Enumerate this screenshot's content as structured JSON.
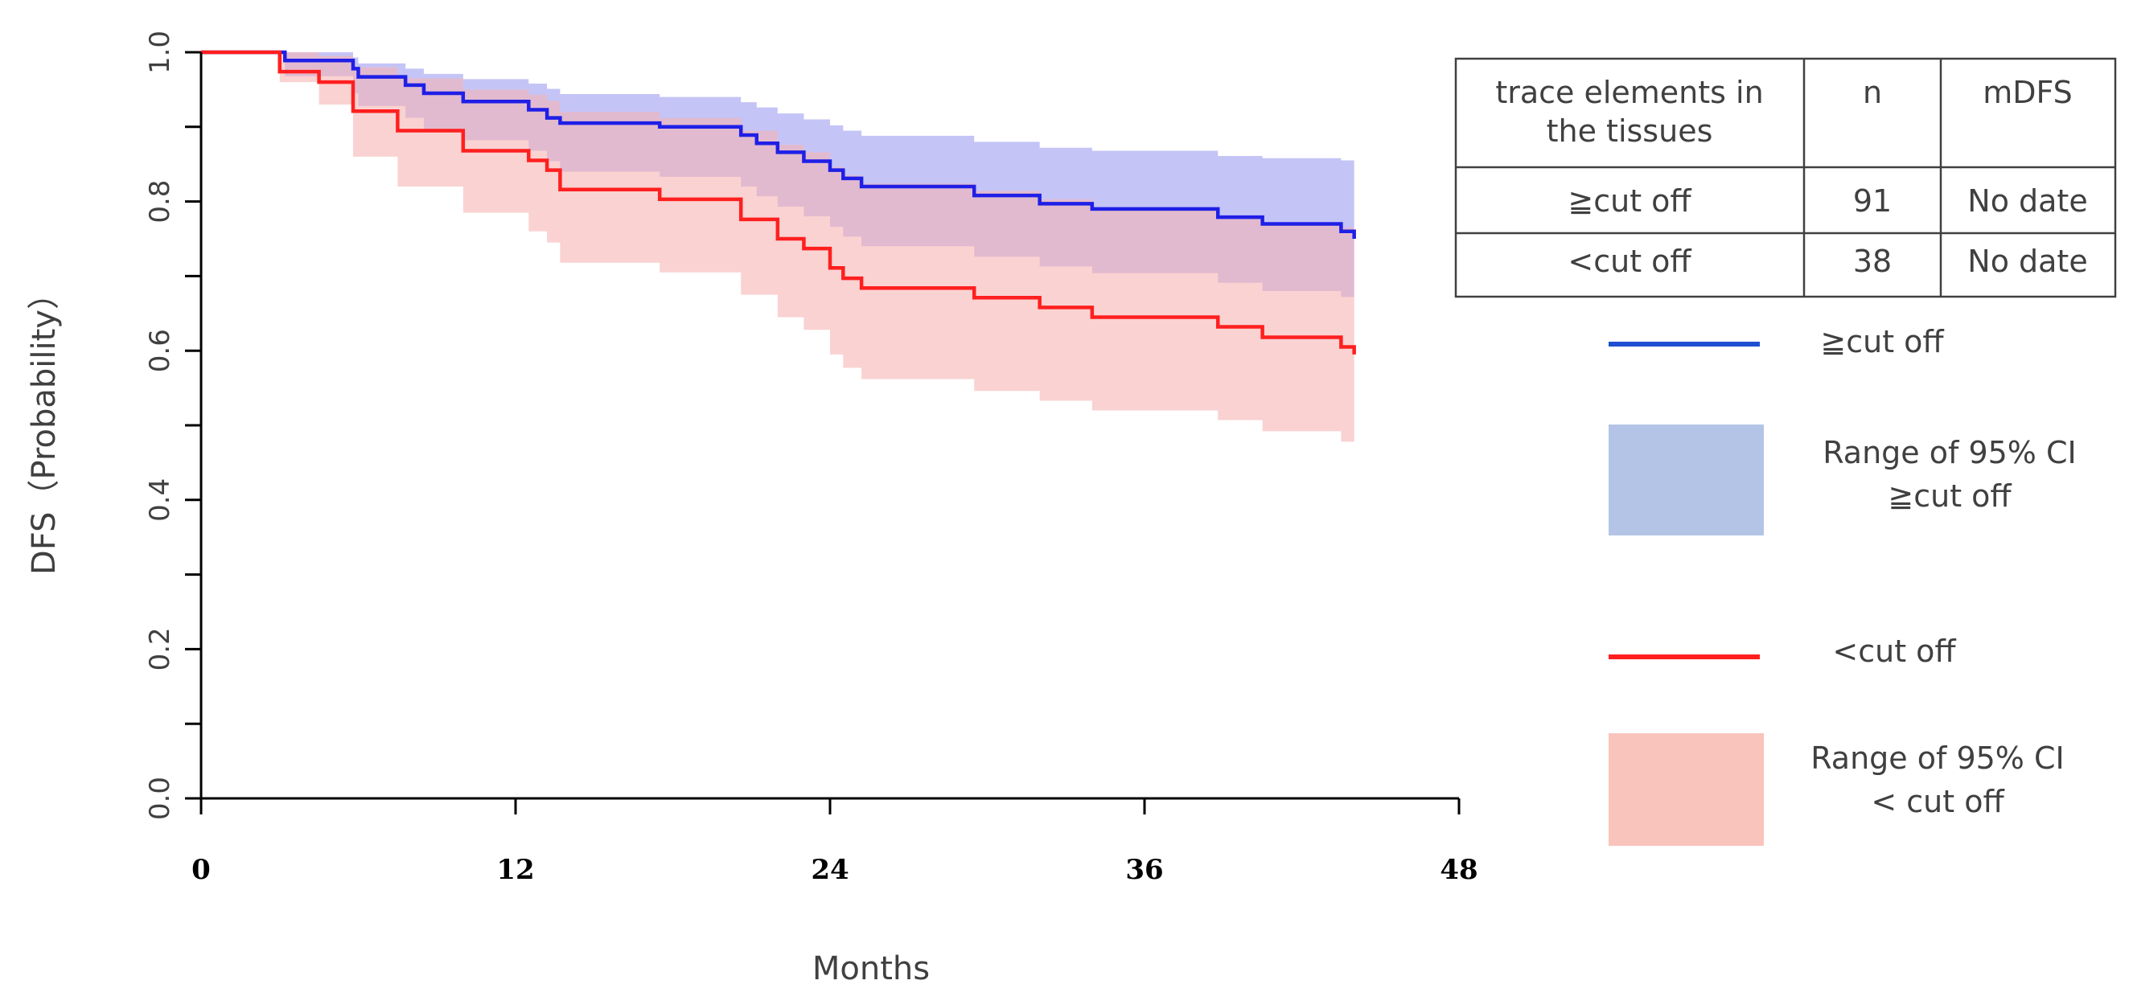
{
  "chart_data": {
    "type": "line",
    "title": "",
    "xlabel": "Months",
    "ylabel": "DFS（Probability）",
    "xlim": [
      0,
      48
    ],
    "ylim": [
      0,
      1
    ],
    "xticks": [
      "0",
      "12",
      "24",
      "36",
      "48"
    ],
    "yticks": [
      "0.0",
      "0.2",
      "0.4",
      "0.6",
      "0.8",
      "1.0"
    ],
    "series": [
      {
        "name": "≧cut off",
        "color": "#1f1fe6",
        "ci_color": "#9c9cf2",
        "ci_label": "Range of 95% CI ≧cut off",
        "steps": [
          {
            "x": 0,
            "y": 1.0,
            "lo": 1.0,
            "hi": 1.0
          },
          {
            "x": 3.2,
            "y": 0.989,
            "lo": 0.968,
            "hi": 1.0
          },
          {
            "x": 5.8,
            "y": 0.978,
            "lo": 0.945,
            "hi": 0.993
          },
          {
            "x": 6.0,
            "y": 0.967,
            "lo": 0.928,
            "hi": 0.985
          },
          {
            "x": 7.8,
            "y": 0.956,
            "lo": 0.912,
            "hi": 0.978
          },
          {
            "x": 8.5,
            "y": 0.945,
            "lo": 0.896,
            "hi": 0.971
          },
          {
            "x": 10.0,
            "y": 0.934,
            "lo": 0.882,
            "hi": 0.964
          },
          {
            "x": 12.5,
            "y": 0.923,
            "lo": 0.868,
            "hi": 0.958
          },
          {
            "x": 13.2,
            "y": 0.912,
            "lo": 0.854,
            "hi": 0.951
          },
          {
            "x": 13.7,
            "y": 0.905,
            "lo": 0.84,
            "hi": 0.944
          },
          {
            "x": 17.5,
            "y": 0.9,
            "lo": 0.833,
            "hi": 0.94
          },
          {
            "x": 20.6,
            "y": 0.889,
            "lo": 0.82,
            "hi": 0.933
          },
          {
            "x": 21.2,
            "y": 0.878,
            "lo": 0.807,
            "hi": 0.926
          },
          {
            "x": 22.0,
            "y": 0.866,
            "lo": 0.793,
            "hi": 0.918
          },
          {
            "x": 23.0,
            "y": 0.854,
            "lo": 0.78,
            "hi": 0.91
          },
          {
            "x": 24.0,
            "y": 0.842,
            "lo": 0.766,
            "hi": 0.902
          },
          {
            "x": 24.5,
            "y": 0.831,
            "lo": 0.753,
            "hi": 0.895
          },
          {
            "x": 25.2,
            "y": 0.82,
            "lo": 0.74,
            "hi": 0.888
          },
          {
            "x": 29.5,
            "y": 0.808,
            "lo": 0.726,
            "hi": 0.88
          },
          {
            "x": 32.0,
            "y": 0.797,
            "lo": 0.713,
            "hi": 0.872
          },
          {
            "x": 34.0,
            "y": 0.79,
            "lo": 0.704,
            "hi": 0.868
          },
          {
            "x": 38.8,
            "y": 0.779,
            "lo": 0.691,
            "hi": 0.861
          },
          {
            "x": 40.5,
            "y": 0.77,
            "lo": 0.68,
            "hi": 0.858
          },
          {
            "x": 43.5,
            "y": 0.76,
            "lo": 0.672,
            "hi": 0.855
          },
          {
            "x": 44.0,
            "y": 0.75,
            "lo": 0.672,
            "hi": 0.855
          }
        ]
      },
      {
        "name": "<cut off",
        "color": "#ff1f1f",
        "ci_color": "#f7b4b4",
        "ci_label": "Range of 95% CI <cut off",
        "steps": [
          {
            "x": 0,
            "y": 1.0,
            "lo": 1.0,
            "hi": 1.0
          },
          {
            "x": 3.0,
            "y": 0.974,
            "lo": 0.96,
            "hi": 1.0
          },
          {
            "x": 4.5,
            "y": 0.96,
            "lo": 0.93,
            "hi": 0.995
          },
          {
            "x": 5.8,
            "y": 0.921,
            "lo": 0.86,
            "hi": 0.98
          },
          {
            "x": 7.5,
            "y": 0.895,
            "lo": 0.82,
            "hi": 0.965
          },
          {
            "x": 10.0,
            "y": 0.868,
            "lo": 0.785,
            "hi": 0.95
          },
          {
            "x": 12.5,
            "y": 0.855,
            "lo": 0.76,
            "hi": 0.943
          },
          {
            "x": 13.2,
            "y": 0.842,
            "lo": 0.745,
            "hi": 0.935
          },
          {
            "x": 13.7,
            "y": 0.816,
            "lo": 0.718,
            "hi": 0.92
          },
          {
            "x": 17.5,
            "y": 0.803,
            "lo": 0.705,
            "hi": 0.912
          },
          {
            "x": 20.6,
            "y": 0.776,
            "lo": 0.675,
            "hi": 0.895
          },
          {
            "x": 22.0,
            "y": 0.75,
            "lo": 0.645,
            "hi": 0.876
          },
          {
            "x": 23.0,
            "y": 0.737,
            "lo": 0.628,
            "hi": 0.866
          },
          {
            "x": 24.0,
            "y": 0.711,
            "lo": 0.595,
            "hi": 0.846
          },
          {
            "x": 24.5,
            "y": 0.697,
            "lo": 0.577,
            "hi": 0.835
          },
          {
            "x": 25.2,
            "y": 0.684,
            "lo": 0.562,
            "hi": 0.824
          },
          {
            "x": 29.5,
            "y": 0.671,
            "lo": 0.546,
            "hi": 0.814
          },
          {
            "x": 32.0,
            "y": 0.658,
            "lo": 0.533,
            "hi": 0.803
          },
          {
            "x": 34.0,
            "y": 0.645,
            "lo": 0.52,
            "hi": 0.792
          },
          {
            "x": 38.8,
            "y": 0.632,
            "lo": 0.507,
            "hi": 0.781
          },
          {
            "x": 40.5,
            "y": 0.618,
            "lo": 0.492,
            "hi": 0.77
          },
          {
            "x": 43.5,
            "y": 0.605,
            "lo": 0.478,
            "hi": 0.765
          },
          {
            "x": 44.0,
            "y": 0.595,
            "lo": 0.468,
            "hi": 0.76
          }
        ]
      }
    ],
    "summary_table": {
      "headers": [
        "trace elements in the tissues",
        "n",
        "mDFS"
      ],
      "rows": [
        [
          "≧cut off",
          "91",
          "No date"
        ],
        [
          "<cut off",
          "38",
          "No date"
        ]
      ]
    },
    "legend": {
      "placement": "right",
      "items": [
        {
          "kind": "line",
          "label": "≧cut off",
          "color": "#1f4fd1"
        },
        {
          "kind": "swatch",
          "label_line1": "Range of 95% CI",
          "label_line2": "≧cut off",
          "color": "#b4c4e6"
        },
        {
          "kind": "line",
          "label": "<cut off",
          "color": "#ff1f1f"
        },
        {
          "kind": "swatch",
          "label_line1": "Range of 95% CI",
          "label_line2": "< cut off",
          "color": "#f9c4bc"
        }
      ]
    }
  }
}
